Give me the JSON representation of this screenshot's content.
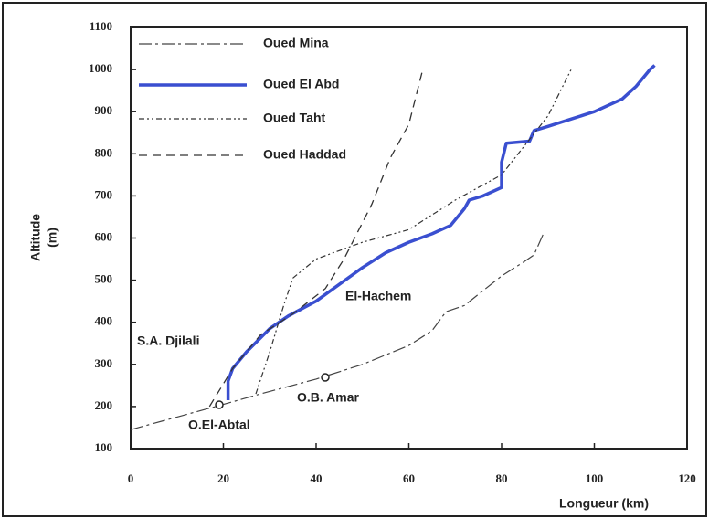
{
  "chart_data": {
    "type": "line",
    "xlabel": "Longueur (km)",
    "ylabel": [
      "Altitude",
      "(m)"
    ],
    "xlim": [
      0,
      120
    ],
    "xticks": [
      0,
      20,
      40,
      60,
      80,
      100,
      120
    ],
    "ylim": [
      100,
      1100
    ],
    "yticks": [
      100,
      200,
      300,
      400,
      500,
      600,
      700,
      800,
      900,
      1000,
      1100
    ],
    "legend": "upper left",
    "series": [
      {
        "name": "Oued Mina",
        "color": "#444444",
        "style": "long-dash",
        "width": 1.2,
        "x": [
          0,
          10,
          20,
          28,
          40,
          50,
          60,
          65,
          68,
          72,
          76,
          80,
          85,
          87,
          89
        ],
        "values": [
          145,
          175,
          205,
          230,
          265,
          300,
          345,
          380,
          425,
          440,
          475,
          510,
          545,
          560,
          610
        ]
      },
      {
        "name": "Oued El Abd",
        "color": "#3a4fd0",
        "style": "solid",
        "width": 3.5,
        "x": [
          21,
          21,
          22,
          25,
          30,
          34,
          40,
          45,
          50,
          55,
          60,
          65,
          69,
          72,
          73,
          76,
          80,
          80,
          81,
          86,
          87,
          90,
          100,
          106,
          109,
          112,
          113
        ],
        "values": [
          215,
          260,
          290,
          330,
          385,
          415,
          450,
          490,
          530,
          565,
          590,
          610,
          630,
          670,
          690,
          700,
          720,
          780,
          825,
          830,
          855,
          865,
          900,
          930,
          960,
          1000,
          1010
        ]
      },
      {
        "name": "Oued Taht",
        "color": "#333333",
        "style": "dash-dot-dot",
        "width": 1.2,
        "x": [
          27,
          30,
          33,
          35,
          40,
          50,
          60,
          70,
          80,
          85,
          90,
          95
        ],
        "values": [
          230,
          330,
          440,
          505,
          550,
          590,
          620,
          690,
          750,
          820,
          890,
          1000
        ]
      },
      {
        "name": "Oued Haddad",
        "color": "#333333",
        "style": "dash",
        "width": 1.3,
        "x": [
          17,
          22,
          28,
          35,
          42,
          46,
          52,
          56,
          60,
          63
        ],
        "values": [
          200,
          290,
          370,
          420,
          480,
          550,
          680,
          790,
          870,
          1000
        ]
      }
    ],
    "annotations": [
      "S.A.  Djilali",
      "El-Hachem",
      "O.B. Amar",
      "O.El-Abtal"
    ]
  }
}
